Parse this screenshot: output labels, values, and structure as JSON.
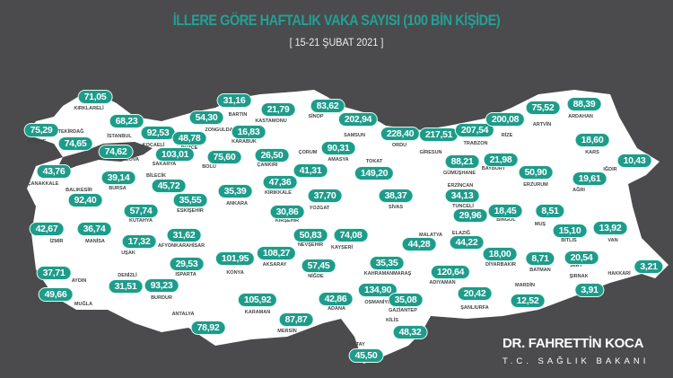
{
  "header": {
    "title": "İLLERE GÖRE HAFTALIK VAKA SAYISI (100 BİN KİŞİDE)",
    "subtitle": "[ 15-21 ŞUBAT 2021 ]"
  },
  "colors": {
    "background": "#4b4b4d",
    "map_fill": "#ffffff",
    "badge": "#1f9b8b",
    "title": "#22a196"
  },
  "provinces": [
    {
      "name": "KIRKLARELİ",
      "value": "71,05"
    },
    {
      "name": "EDİRNE",
      "value": "75,29"
    },
    {
      "name": "TEKİRDAĞ",
      "value": "74,65"
    },
    {
      "name": "İSTANBUL",
      "value": "68,23"
    },
    {
      "name": "KOCAELİ",
      "value": "92,53"
    },
    {
      "name": "YALOVA",
      "value": "74,62"
    },
    {
      "name": "DÜZCE",
      "value": "48,78"
    },
    {
      "name": "SAKARYA",
      "value": "103,01"
    },
    {
      "name": "BOLU",
      "value": "75,60"
    },
    {
      "name": "ÇANAKKALE",
      "value": "43,76"
    },
    {
      "name": "BURSA",
      "value": "39,14"
    },
    {
      "name": "BİLECİK",
      "value": "45,72"
    },
    {
      "name": "BALIKESİR",
      "value": "92,40"
    },
    {
      "name": "ESKİŞEHİR",
      "value": "35,55"
    },
    {
      "name": "KÜTAHYA",
      "value": "57,74"
    },
    {
      "name": "ANKARA",
      "value": "35,39"
    },
    {
      "name": "ZONGULDAK",
      "value": "54,30"
    },
    {
      "name": "BARTIN",
      "value": "31,16"
    },
    {
      "name": "KARABÜK",
      "value": "16,83"
    },
    {
      "name": "KASTAMONU",
      "value": "21,79"
    },
    {
      "name": "SİNOP",
      "value": "83,62"
    },
    {
      "name": "SAMSUN",
      "value": "202,94"
    },
    {
      "name": "ÇANKIRI",
      "value": "26,50"
    },
    {
      "name": "ÇORUM",
      "value": "41,31"
    },
    {
      "name": "KIRIKKALE",
      "value": "47,36"
    },
    {
      "name": "AMASYA",
      "value": "90,31"
    },
    {
      "name": "TOKAT",
      "value": "149,20"
    },
    {
      "name": "ORDU",
      "value": "228,40"
    },
    {
      "name": "YOZGAT",
      "value": "37,70"
    },
    {
      "name": "SİVAS",
      "value": "38,37"
    },
    {
      "name": "KIRŞEHİR",
      "value": "30,86"
    },
    {
      "name": "NEVŞEHİR",
      "value": "50,83"
    },
    {
      "name": "KAYSERİ",
      "value": "74,08"
    },
    {
      "name": "AKSARAY",
      "value": "108,27"
    },
    {
      "name": "KONYA",
      "value": "101,95"
    },
    {
      "name": "NİĞDE",
      "value": "57,45"
    },
    {
      "name": "KARAMAN",
      "value": "105,92"
    },
    {
      "name": "MERSİN",
      "value": "87,87"
    },
    {
      "name": "ADANA",
      "value": "42,86"
    },
    {
      "name": "OSMANİYE",
      "value": "134,90"
    },
    {
      "name": "HATAY",
      "value": "45,50"
    },
    {
      "name": "KİLİS",
      "value": "48,32"
    },
    {
      "name": "GAZİANTEP",
      "value": "35,08"
    },
    {
      "name": "KAHRAMANMARAŞ",
      "value": "35,35"
    },
    {
      "name": "MALATYA",
      "value": "44,28"
    },
    {
      "name": "ADIYAMAN",
      "value": "120,64"
    },
    {
      "name": "ŞANLIURFA",
      "value": "20,42"
    },
    {
      "name": "ELAZIĞ",
      "value": "44,22"
    },
    {
      "name": "TUNCELİ",
      "value": "29,96"
    },
    {
      "name": "ERZİNCAN",
      "value": "34,13"
    },
    {
      "name": "GÜMÜŞHANE",
      "value": "88,21"
    },
    {
      "name": "BAYBURT",
      "value": "21,98"
    },
    {
      "name": "GİRESUN",
      "value": "217,51"
    },
    {
      "name": "TRABZON",
      "value": "207,54"
    },
    {
      "name": "RİZE",
      "value": "200,08"
    },
    {
      "name": "ARTVİN",
      "value": "75,52"
    },
    {
      "name": "ARDAHAN",
      "value": "88,39"
    },
    {
      "name": "KARS",
      "value": "18,60"
    },
    {
      "name": "ERZURUM",
      "value": "50,90"
    },
    {
      "name": "IĞDIR",
      "value": "10,43"
    },
    {
      "name": "AĞRI",
      "value": "19,61"
    },
    {
      "name": "BİNGÖL",
      "value": "18,45"
    },
    {
      "name": "MUŞ",
      "value": "8,51"
    },
    {
      "name": "BİTLİS",
      "value": "15,10"
    },
    {
      "name": "VAN",
      "value": "13,92"
    },
    {
      "name": "DİYARBAKIR",
      "value": "18,00"
    },
    {
      "name": "BATMAN",
      "value": "8,71"
    },
    {
      "name": "SİİRT",
      "value": "20,54"
    },
    {
      "name": "ŞIRNAK",
      "value": "3,91"
    },
    {
      "name": "HAKKARİ",
      "value": "3,21"
    },
    {
      "name": "MARDİN",
      "value": "12,52"
    },
    {
      "name": "İZMİR",
      "value": "42,67"
    },
    {
      "name": "MANİSA",
      "value": "36,74"
    },
    {
      "name": "UŞAK",
      "value": "17,32"
    },
    {
      "name": "AFYONKARAHİSAR",
      "value": "31,62"
    },
    {
      "name": "ISPARTA",
      "value": "29,53"
    },
    {
      "name": "DENİZLİ",
      "value": "31,51"
    },
    {
      "name": "BURDUR",
      "value": "93,23"
    },
    {
      "name": "AYDIN",
      "value": "37,71"
    },
    {
      "name": "MUĞLA",
      "value": "49,66"
    },
    {
      "name": "ANTALYA",
      "value": "78,92"
    }
  ],
  "signature": {
    "name": "DR. FAHRETTİN KOCA",
    "title": "T.C. SAĞLIK BAKANI"
  }
}
